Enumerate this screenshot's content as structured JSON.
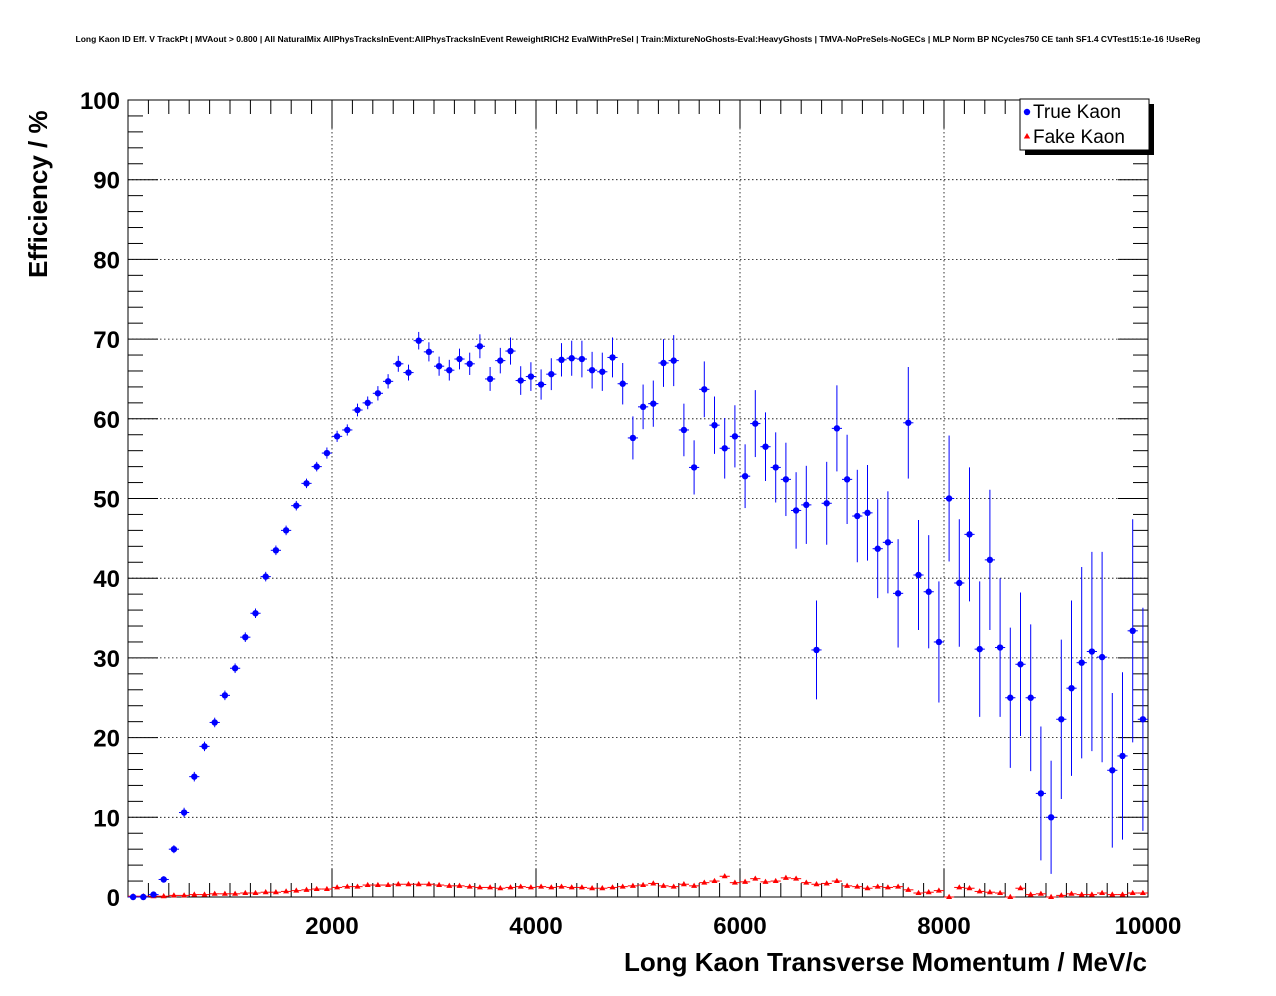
{
  "chart_data": {
    "type": "scatter",
    "title": "Long Kaon ID Eff. V TrackPt | MVAout > 0.800 | All NaturalMix AllPhysTracksInEvent:AllPhysTracksInEvent ReweightRICH2 EvalWithPreSel | Train:MixtureNoGhosts-Eval:HeavyGhosts | TMVA-NoPreSels-NoGECs | MLP Norm BP NCycles750 CE tanh SF1.4 CVTest15:1e-16 !UseReg",
    "xlabel": "Long Kaon Transverse Momentum / MeV/c",
    "ylabel": "Efficiency / %",
    "xlim": [
      0,
      10000
    ],
    "ylim": [
      0,
      100
    ],
    "x_ticks": [
      "2000",
      "4000",
      "6000",
      "8000",
      "10000"
    ],
    "y_ticks": [
      "0",
      "10",
      "20",
      "30",
      "40",
      "50",
      "60",
      "70",
      "80",
      "90",
      "100"
    ],
    "grid": true,
    "legend_position": "top-right",
    "series": [
      {
        "name": "True Kaon",
        "color": "#0000ff",
        "marker": "circle",
        "x": [
          50,
          150,
          250,
          350,
          450,
          550,
          650,
          750,
          850,
          950,
          1050,
          1150,
          1250,
          1350,
          1450,
          1550,
          1650,
          1750,
          1850,
          1950,
          2050,
          2150,
          2250,
          2350,
          2450,
          2550,
          2650,
          2750,
          2850,
          2950,
          3050,
          3150,
          3250,
          3350,
          3450,
          3550,
          3650,
          3750,
          3850,
          3950,
          4050,
          4150,
          4250,
          4350,
          4450,
          4550,
          4650,
          4750,
          4850,
          4950,
          5050,
          5150,
          5250,
          5350,
          5450,
          5550,
          5650,
          5750,
          5850,
          5950,
          6050,
          6150,
          6250,
          6350,
          6450,
          6550,
          6650,
          6750,
          6850,
          6950,
          7050,
          7150,
          7250,
          7350,
          7450,
          7550,
          7650,
          7750,
          7850,
          7950,
          8050,
          8150,
          8250,
          8350,
          8450,
          8550,
          8650,
          8750,
          8850,
          8950,
          9050,
          9150,
          9250,
          9350,
          9450,
          9550,
          9650,
          9750,
          9850,
          9950
        ],
        "y": [
          0.0,
          0.0,
          0.3,
          2.2,
          6.0,
          10.6,
          15.1,
          18.9,
          21.9,
          25.3,
          28.7,
          32.6,
          35.6,
          40.2,
          43.5,
          46.0,
          49.1,
          51.9,
          54.0,
          55.7,
          57.8,
          58.6,
          61.1,
          62.0,
          63.2,
          64.7,
          66.9,
          65.8,
          69.8,
          68.4,
          66.6,
          66.1,
          67.5,
          66.9,
          69.1,
          65.0,
          67.3,
          68.5,
          64.8,
          65.3,
          64.3,
          65.6,
          67.4,
          67.6,
          67.5,
          66.1,
          65.9,
          67.7,
          64.4,
          57.6,
          61.5,
          61.9,
          67.0,
          67.3,
          58.6,
          53.9,
          63.7,
          59.2,
          56.3,
          57.8,
          52.8,
          59.4,
          56.5,
          53.9,
          52.4,
          48.5,
          49.2,
          31.0,
          49.4,
          58.8,
          52.4,
          47.8,
          48.2,
          43.7,
          44.5,
          38.1,
          59.5,
          40.4,
          38.3,
          32.0,
          50.0,
          39.4,
          45.5,
          31.1,
          42.3,
          31.3,
          25.0,
          29.2,
          25.0,
          13.0,
          10.0,
          22.3,
          26.2,
          29.4,
          30.8,
          30.1,
          15.9,
          17.7,
          33.4,
          22.3
        ],
        "err": [
          0,
          0,
          0.2,
          0.4,
          0.5,
          0.6,
          0.6,
          0.6,
          0.6,
          0.6,
          0.6,
          0.6,
          0.6,
          0.6,
          0.6,
          0.6,
          0.6,
          0.6,
          0.6,
          0.7,
          0.7,
          0.7,
          0.8,
          0.8,
          0.9,
          0.9,
          1.0,
          1.0,
          1.1,
          1.2,
          1.2,
          1.3,
          1.3,
          1.4,
          1.5,
          1.5,
          1.6,
          1.7,
          1.8,
          1.8,
          1.9,
          2.0,
          2.1,
          2.2,
          2.3,
          2.3,
          2.4,
          2.5,
          2.6,
          2.7,
          2.8,
          2.9,
          3.0,
          3.2,
          3.3,
          3.4,
          3.5,
          3.6,
          3.8,
          3.9,
          4.0,
          4.2,
          4.3,
          4.4,
          4.6,
          4.8,
          4.9,
          6.2,
          5.2,
          5.4,
          5.6,
          5.8,
          6.0,
          6.2,
          6.4,
          6.8,
          7.0,
          6.9,
          7.1,
          7.6,
          7.9,
          8.0,
          8.4,
          8.5,
          8.8,
          8.7,
          8.8,
          9.0,
          9.2,
          8.4,
          7.1,
          10.0,
          11.0,
          12.0,
          12.5,
          13.2,
          9.7,
          10.5,
          14.0,
          14.0
        ]
      },
      {
        "name": "Fake Kaon",
        "color": "#ff0000",
        "marker": "triangle",
        "x": [
          50,
          150,
          250,
          350,
          450,
          550,
          650,
          750,
          850,
          950,
          1050,
          1150,
          1250,
          1350,
          1450,
          1550,
          1650,
          1750,
          1850,
          1950,
          2050,
          2150,
          2250,
          2350,
          2450,
          2550,
          2650,
          2750,
          2850,
          2950,
          3050,
          3150,
          3250,
          3350,
          3450,
          3550,
          3650,
          3750,
          3850,
          3950,
          4050,
          4150,
          4250,
          4350,
          4450,
          4550,
          4650,
          4750,
          4850,
          4950,
          5050,
          5150,
          5250,
          5350,
          5450,
          5550,
          5650,
          5750,
          5850,
          5950,
          6050,
          6150,
          6250,
          6350,
          6450,
          6550,
          6650,
          6750,
          6850,
          6950,
          7050,
          7150,
          7250,
          7350,
          7450,
          7550,
          7650,
          7750,
          7850,
          7950,
          8050,
          8150,
          8250,
          8350,
          8450,
          8550,
          8650,
          8750,
          8850,
          8950,
          9050,
          9150,
          9250,
          9350,
          9450,
          9550,
          9650,
          9750,
          9850,
          9950
        ],
        "y": [
          0.1,
          0.1,
          0.1,
          0.1,
          0.2,
          0.2,
          0.3,
          0.3,
          0.4,
          0.4,
          0.4,
          0.5,
          0.5,
          0.6,
          0.6,
          0.7,
          0.8,
          0.9,
          1.0,
          1.0,
          1.2,
          1.3,
          1.3,
          1.5,
          1.5,
          1.5,
          1.6,
          1.6,
          1.6,
          1.6,
          1.5,
          1.4,
          1.4,
          1.3,
          1.2,
          1.2,
          1.1,
          1.2,
          1.3,
          1.2,
          1.3,
          1.2,
          1.3,
          1.2,
          1.2,
          1.1,
          1.1,
          1.2,
          1.3,
          1.4,
          1.5,
          1.7,
          1.4,
          1.3,
          1.6,
          1.4,
          1.8,
          2.0,
          2.6,
          1.8,
          1.9,
          2.3,
          1.9,
          2.0,
          2.4,
          2.3,
          1.8,
          1.6,
          1.7,
          2.0,
          1.4,
          1.3,
          1.1,
          1.3,
          1.2,
          1.3,
          0.9,
          0.5,
          0.6,
          0.8,
          0.0,
          1.2,
          1.1,
          0.7,
          0.6,
          0.5,
          0.0,
          1.1,
          0.3,
          0.4,
          0.0,
          0.2,
          0.4,
          0.3,
          0.3,
          0.5,
          0.3,
          0.3,
          0.5,
          0.5
        ]
      }
    ]
  }
}
